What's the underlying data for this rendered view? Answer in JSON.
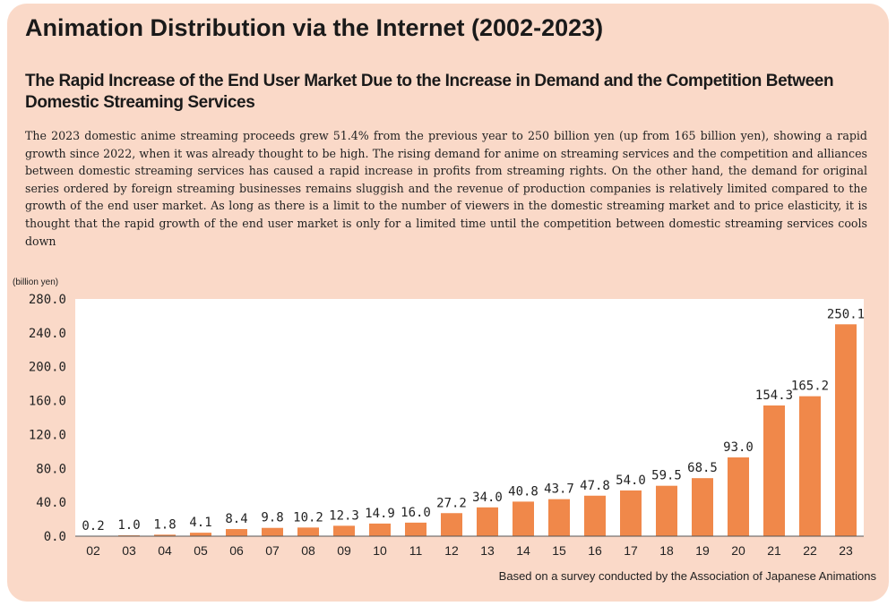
{
  "title": "Animation Distribution via the Internet (2002-2023)",
  "subtitle": "The Rapid Increase of the End User Market Due to the Increase in Demand and the Competition Between Domestic Streaming Services",
  "body": "The 2023 domestic anime streaming proceeds grew 51.4% from the previous year to 250 billion yen (up from 165 billion yen), showing a rapid growth since 2022, when it was already thought to be high. The rising demand for anime on streaming services and the competition and alliances between domestic streaming services has caused a rapid increase in profits from streaming rights. On the other hand, the demand for original series ordered by foreign streaming businesses remains sluggish and the revenue of production companies is relatively limited compared to the growth of the end user market. As long as there is a limit to the number of viewers in the domestic streaming market and to price elasticity, it is thought that the rapid growth of the end user market is only for a limited time until the competition between domestic streaming services cools down",
  "source": "Based on a survey conducted by the Association of Japanese Animations",
  "colors": {
    "background": "#fad9c8",
    "bar": "#f0884a",
    "plot": "#ffffff"
  },
  "chart_data": {
    "type": "bar",
    "title": "Animation Distribution via the Internet (2002-2023)",
    "ylabel": "(billion yen)",
    "xlabel": "",
    "categories": [
      "02",
      "03",
      "04",
      "05",
      "06",
      "07",
      "08",
      "09",
      "10",
      "11",
      "12",
      "13",
      "14",
      "15",
      "16",
      "17",
      "18",
      "19",
      "20",
      "21",
      "22",
      "23"
    ],
    "values": [
      0.2,
      1.0,
      1.8,
      4.1,
      8.4,
      9.8,
      10.2,
      12.3,
      14.9,
      16.0,
      27.2,
      34.0,
      40.8,
      43.7,
      47.8,
      54.0,
      59.5,
      68.5,
      93.0,
      154.3,
      165.2,
      250.1
    ],
    "value_labels": [
      "0.2",
      "1.0",
      "1.8",
      "4.1",
      "8.4",
      "9.8",
      "10.2",
      "12.3",
      "14.9",
      "16.0",
      "27.2",
      "34.0",
      "40.8",
      "43.7",
      "47.8",
      "54.0",
      "59.5",
      "68.5",
      "93.0",
      "154.3",
      "165.2",
      "250.1"
    ],
    "ylim": [
      0,
      280
    ],
    "yticks": [
      0,
      40,
      80,
      120,
      160,
      200,
      240,
      280
    ],
    "ytick_labels": [
      "0.0",
      "40.0",
      "80.0",
      "120.0",
      "160.0",
      "200.0",
      "240.0",
      "280.0"
    ],
    "grid": false
  }
}
